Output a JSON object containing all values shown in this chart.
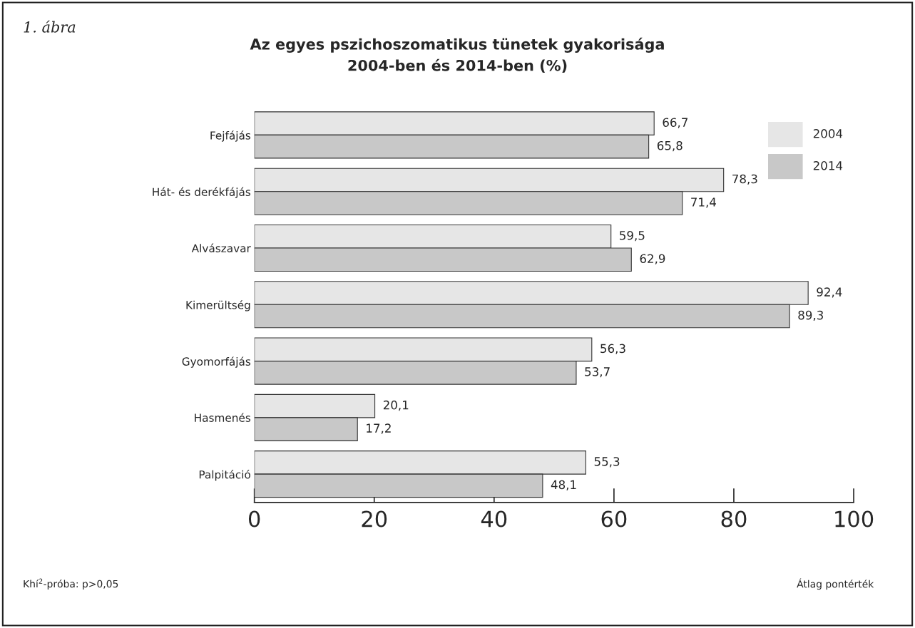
{
  "chart_data": {
    "type": "bar",
    "orientation": "horizontal",
    "title": "Az egyes pszichoszomatikus tünetek gyakorisága\n2004-ben és 2014-ben (%)",
    "categories": [
      "Fejfájás",
      "Hát- és derékfájás",
      "Alvászavar",
      "Kimerültség",
      "Gyomorfájás",
      "Hasmenés",
      "Palpitáció"
    ],
    "series": [
      {
        "name": "2004",
        "color": "#e6e6e6",
        "values": [
          66.7,
          78.3,
          59.5,
          92.4,
          56.3,
          20.1,
          55.3
        ],
        "value_labels": [
          "66,7",
          "78,3",
          "59,5",
          "92,4",
          "56,3",
          "20,1",
          "55,3"
        ]
      },
      {
        "name": "2014",
        "color": "#c8c8c8",
        "values": [
          65.8,
          71.4,
          62.9,
          89.3,
          53.7,
          17.2,
          48.1
        ],
        "value_labels": [
          "65,8",
          "71,4",
          "62,9",
          "89,3",
          "53,7",
          "17,2",
          "48,1"
        ]
      }
    ],
    "xlim": [
      0,
      100
    ],
    "xticks": [
      0,
      20,
      40,
      60,
      80,
      100
    ],
    "grid": false,
    "legend": "top right",
    "annotations": [
      "1. ábra",
      "Khí$^{2}$-próba: p>0,05",
      "Átlag pontérték"
    ]
  }
}
